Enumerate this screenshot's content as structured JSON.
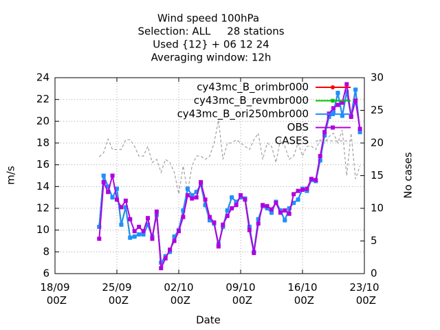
{
  "chart_data": {
    "type": "line",
    "title": [
      "Wind speed 100hPa",
      "Selection: ALL     28 stations",
      "Used {12} + 06 12 24",
      "Averaging window: 12h"
    ],
    "xlabel": "Date",
    "ylabel": "m/s",
    "y2label": "No cases",
    "x": [
      "23/09 00Z",
      "23/09 12Z",
      "24/09 00Z",
      "24/09 12Z",
      "25/09 00Z",
      "25/09 12Z",
      "26/09 00Z",
      "26/09 12Z",
      "27/09 00Z",
      "27/09 12Z",
      "28/09 00Z",
      "28/09 12Z",
      "29/09 00Z",
      "29/09 12Z",
      "30/09 00Z",
      "30/09 12Z",
      "01/10 00Z",
      "01/10 12Z",
      "02/10 00Z",
      "02/10 12Z",
      "03/10 00Z",
      "03/10 12Z",
      "04/10 00Z",
      "04/10 12Z",
      "05/10 00Z",
      "05/10 12Z",
      "06/10 00Z",
      "06/10 12Z",
      "07/10 00Z",
      "07/10 12Z",
      "08/10 00Z",
      "08/10 12Z",
      "09/10 00Z",
      "09/10 12Z",
      "10/10 00Z",
      "10/10 12Z",
      "11/10 00Z",
      "11/10 12Z",
      "12/10 00Z",
      "12/10 12Z",
      "13/10 00Z",
      "13/10 12Z",
      "14/10 00Z",
      "14/10 12Z",
      "15/10 00Z",
      "15/10 12Z",
      "16/10 00Z",
      "16/10 12Z",
      "17/10 00Z",
      "17/10 12Z",
      "18/10 00Z",
      "18/10 12Z",
      "19/10 00Z",
      "19/10 12Z",
      "20/10 00Z",
      "20/10 12Z",
      "21/10 00Z",
      "21/10 12Z",
      "22/10 00Z",
      "22/10 12Z"
    ],
    "xlim": [
      "18/09 00Z",
      "23/10 00Z"
    ],
    "xticks": [
      "18/09 00Z",
      "25/09 00Z",
      "02/10 00Z",
      "09/10 00Z",
      "16/10 00Z",
      "23/10 00Z"
    ],
    "ylim": [
      6,
      24
    ],
    "yticks": [
      6,
      8,
      10,
      12,
      14,
      16,
      18,
      20,
      22,
      24
    ],
    "y2lim": [
      0,
      30
    ],
    "y2ticks": [
      0,
      5,
      10,
      15,
      20,
      25,
      30
    ],
    "grid": true,
    "legend": "top-right",
    "series": [
      {
        "name": "CASES",
        "color": "#a0a0a0",
        "axis": "y2",
        "dashed": true,
        "values": [
          17.9,
          18.5,
          20.6,
          19.0,
          19.0,
          19.0,
          20.5,
          20.5,
          19.5,
          18.0,
          18.0,
          19.5,
          17.0,
          17.5,
          15.5,
          17.5,
          17.0,
          15.5,
          12.2,
          16.5,
          12.5,
          16.5,
          18.0,
          18.0,
          17.5,
          18.0,
          20.0,
          23.5,
          17.5,
          20.0,
          20.0,
          20.5,
          20.0,
          19.5,
          19.0,
          20.5,
          21.5,
          17.5,
          20.0,
          19.5,
          17.0,
          20.5,
          19.5,
          17.5,
          18.0,
          20.0,
          18.0,
          19.5,
          19.5,
          19.0,
          20.5,
          20.0,
          21.0,
          21.5,
          20.0,
          22.0,
          15.0,
          21.5,
          14.5,
          16.5
        ]
      },
      {
        "name": "cy43mc_B_orimbr000",
        "color": "#ff0000",
        "marker": "circle",
        "values": [
          10.3,
          15.0,
          14.0,
          13.0,
          13.8,
          10.5,
          12.1,
          9.3,
          9.4,
          9.6,
          9.6,
          10.5,
          9.4,
          11.4,
          7.0,
          7.6,
          8.0,
          9.4,
          10.0,
          11.8,
          13.8,
          13.2,
          13.5,
          14.2,
          12.3,
          10.9,
          10.6,
          8.7,
          10.3,
          11.8,
          13.0,
          12.6,
          13.0,
          12.9,
          10.3,
          8.0,
          11.0,
          12.2,
          12.0,
          11.6,
          12.6,
          11.8,
          10.9,
          12.0,
          12.5,
          12.8,
          13.8,
          13.6,
          14.6,
          14.5,
          16.4,
          18.7,
          20.4,
          20.8,
          22.6,
          20.5,
          22.7,
          20.5,
          22.9,
          19.0
        ]
      },
      {
        "name": "cy43mc_B_revmbr000",
        "color": "#00c000",
        "marker": "star",
        "values": [
          10.3,
          15.0,
          14.0,
          13.0,
          13.8,
          10.5,
          12.1,
          9.3,
          9.4,
          9.6,
          9.6,
          10.5,
          9.4,
          11.4,
          7.0,
          7.6,
          8.0,
          9.4,
          10.0,
          11.8,
          13.8,
          13.2,
          13.5,
          14.2,
          12.3,
          10.9,
          10.6,
          8.7,
          10.3,
          11.8,
          13.0,
          12.6,
          13.0,
          12.9,
          10.3,
          8.0,
          11.0,
          12.2,
          12.0,
          11.6,
          12.6,
          11.8,
          10.9,
          12.0,
          12.5,
          12.8,
          13.8,
          13.6,
          14.6,
          14.5,
          16.4,
          18.7,
          20.4,
          20.8,
          22.6,
          20.5,
          22.7,
          20.5,
          22.9,
          19.0
        ]
      },
      {
        "name": "cy43mc_B_ori250mbr000",
        "color": "#1e90ff",
        "marker": "square",
        "values": [
          10.3,
          15.0,
          14.0,
          13.0,
          13.8,
          10.5,
          12.1,
          9.3,
          9.4,
          9.6,
          9.6,
          10.5,
          9.4,
          11.4,
          7.0,
          7.6,
          8.0,
          9.4,
          10.0,
          11.8,
          13.8,
          13.2,
          13.5,
          14.2,
          12.3,
          10.9,
          10.6,
          8.7,
          10.3,
          11.8,
          13.0,
          12.6,
          13.0,
          12.9,
          10.3,
          8.0,
          11.0,
          12.2,
          12.0,
          11.6,
          12.6,
          11.8,
          10.9,
          12.0,
          12.5,
          12.8,
          13.8,
          13.6,
          14.6,
          14.5,
          16.4,
          18.7,
          20.4,
          20.8,
          22.6,
          20.5,
          22.7,
          20.5,
          22.9,
          19.0
        ]
      },
      {
        "name": "OBS",
        "color": "#b000e0",
        "marker": "square",
        "values": [
          9.2,
          14.4,
          13.5,
          15.0,
          12.8,
          12.1,
          12.7,
          11.0,
          9.9,
          10.3,
          9.9,
          11.1,
          9.2,
          11.7,
          6.5,
          7.4,
          8.2,
          9.0,
          9.9,
          11.2,
          13.2,
          12.9,
          13.0,
          14.4,
          12.8,
          11.2,
          10.7,
          8.5,
          10.5,
          11.3,
          12.0,
          12.3,
          13.2,
          12.8,
          10.0,
          7.9,
          10.6,
          12.3,
          12.2,
          11.9,
          12.5,
          11.6,
          11.8,
          11.5,
          13.3,
          13.6,
          13.7,
          13.8,
          14.7,
          14.6,
          16.8,
          19.0,
          20.7,
          21.2,
          21.5,
          21.7,
          23.4,
          20.4,
          21.9,
          19.3
        ]
      }
    ]
  }
}
